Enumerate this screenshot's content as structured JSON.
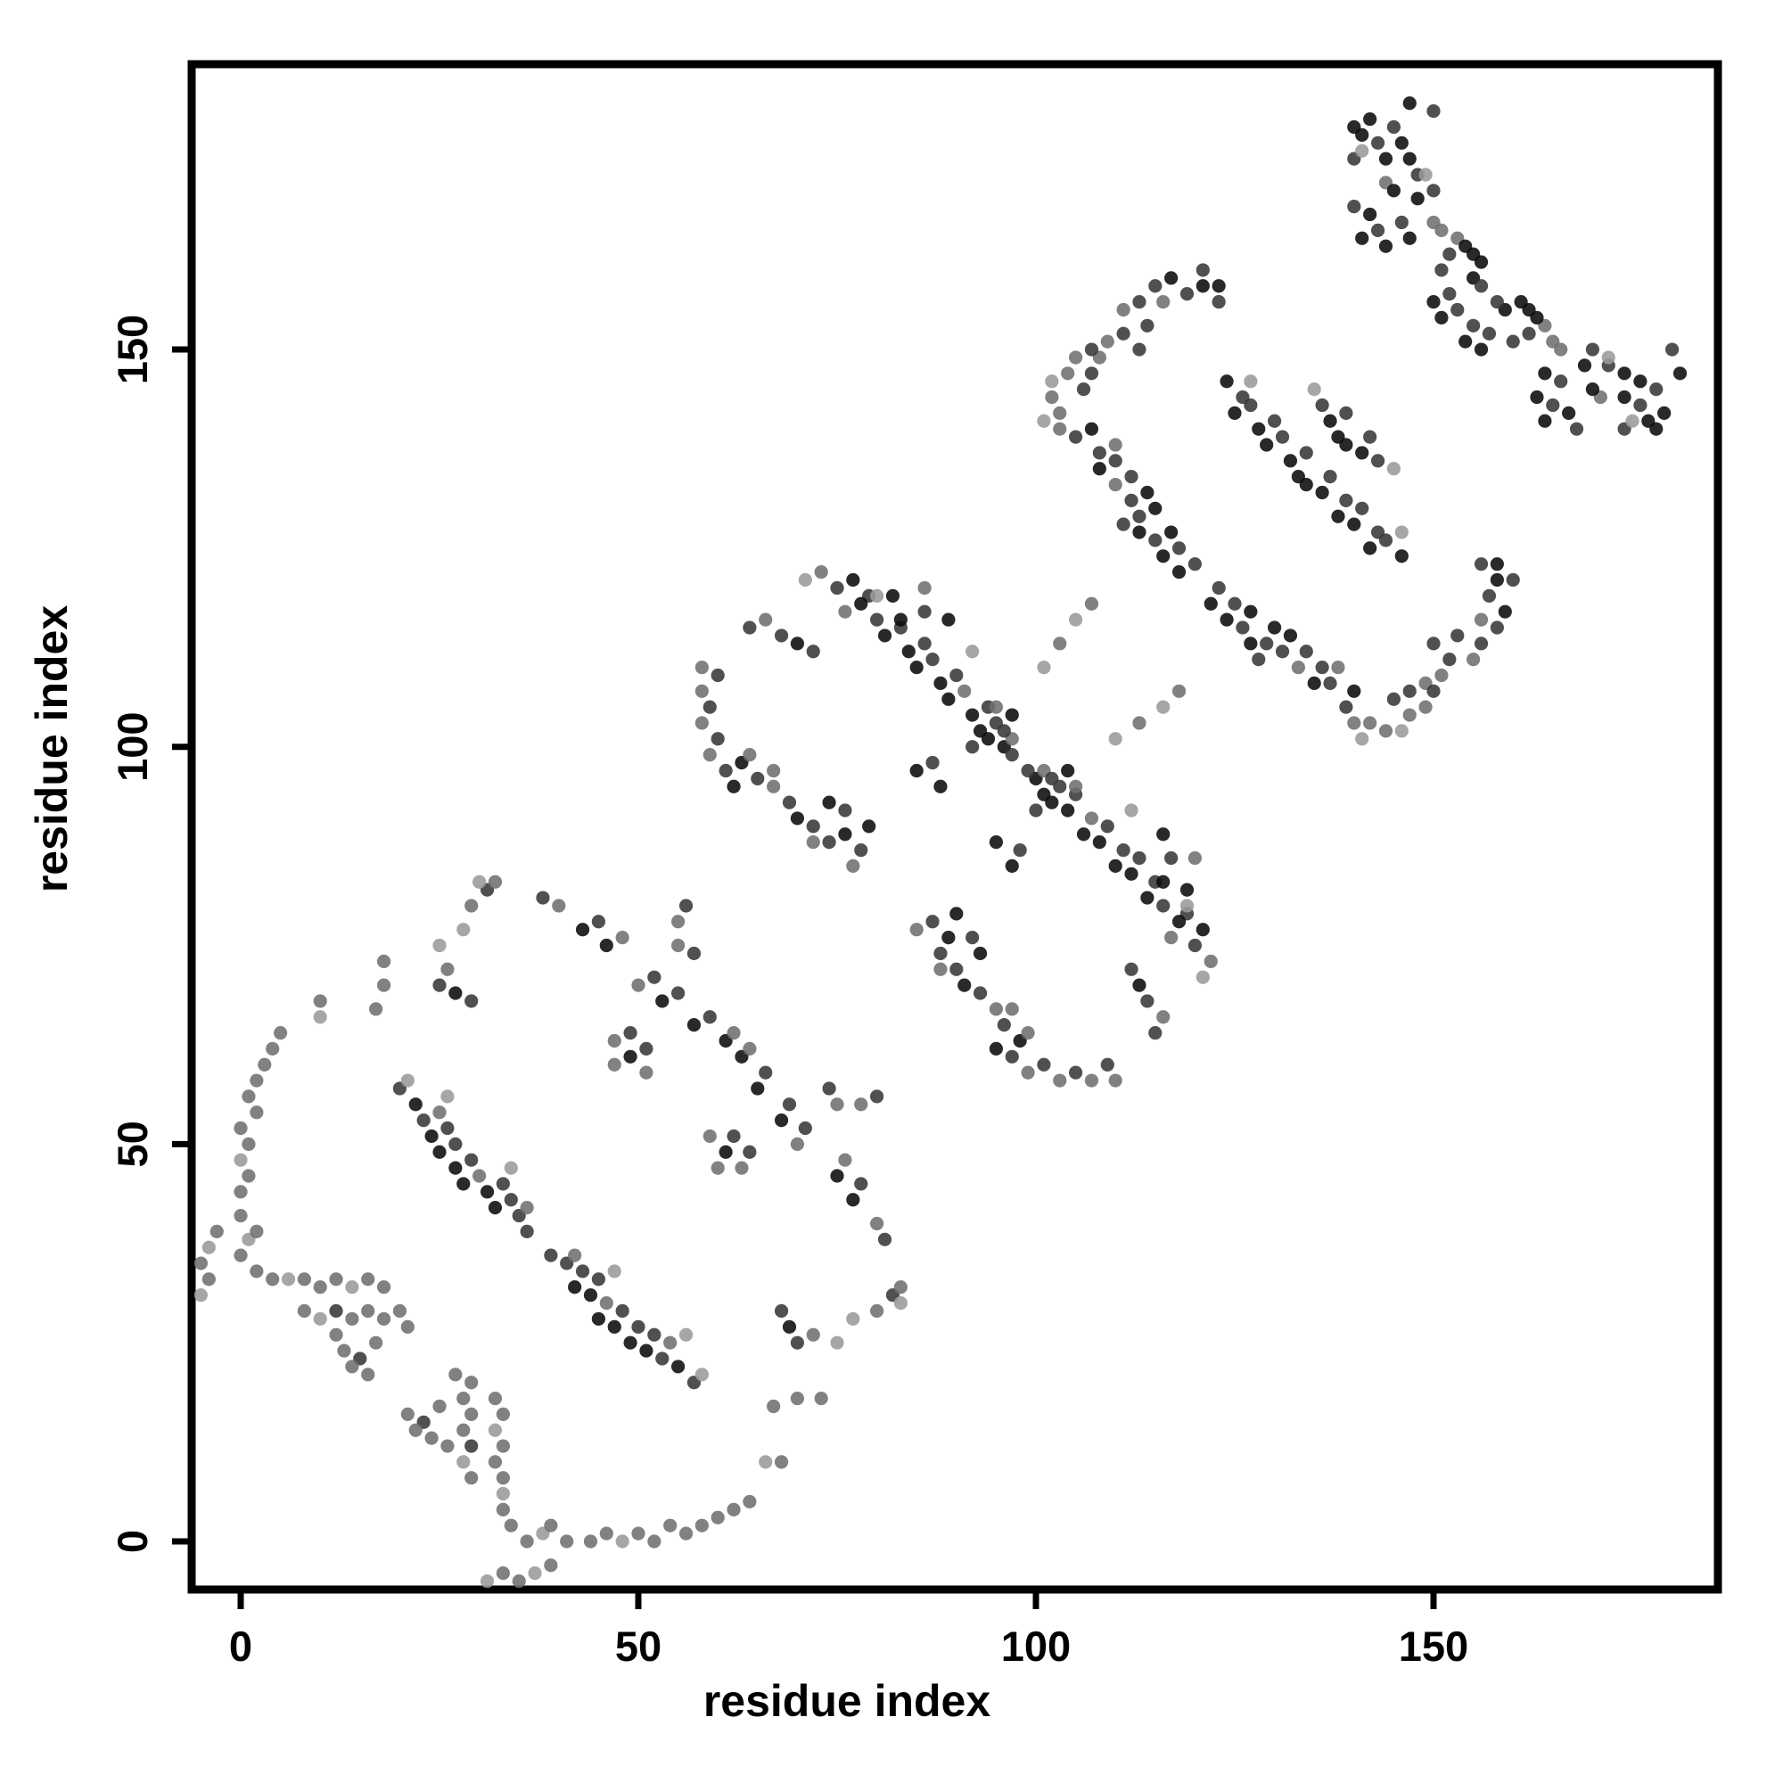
{
  "chart_data": {
    "type": "scatter",
    "title": "",
    "xlabel": "residue index",
    "ylabel": "residue index",
    "xlim": [
      -6,
      186
    ],
    "ylim": [
      -6,
      186
    ],
    "x_ticks": [
      0,
      50,
      100,
      150
    ],
    "y_ticks": [
      0,
      50,
      100,
      150
    ],
    "grid": false,
    "legend": "none",
    "symmetric_about_diagonal": true,
    "marker": {
      "radius_px": 7.6,
      "opacity": 0.88
    },
    "shade_palette": [
      "#0b0b0b",
      "#383838",
      "#6f6f6f",
      "#9a9a9a"
    ],
    "points_note": "unique contact pairs (i<j); map is symmetric, mirror (j,i) also plotted; third value = shade index into shade_palette",
    "points": [
      [
        -5,
        31,
        3
      ],
      [
        -4,
        33,
        2
      ],
      [
        -5,
        35,
        2
      ],
      [
        -4,
        37,
        3
      ],
      [
        -3,
        39,
        2
      ],
      [
        0,
        36,
        2
      ],
      [
        1,
        38,
        3
      ],
      [
        2,
        39,
        2
      ],
      [
        0,
        41,
        2
      ],
      [
        2,
        34,
        2
      ],
      [
        4,
        33,
        2
      ],
      [
        6,
        33,
        3
      ],
      [
        8,
        33,
        2
      ],
      [
        10,
        32,
        2
      ],
      [
        12,
        33,
        2
      ],
      [
        14,
        32,
        3
      ],
      [
        16,
        33,
        2
      ],
      [
        18,
        32,
        2
      ],
      [
        8,
        29,
        2
      ],
      [
        10,
        28,
        3
      ],
      [
        12,
        29,
        1
      ],
      [
        14,
        28,
        2
      ],
      [
        16,
        29,
        2
      ],
      [
        18,
        28,
        2
      ],
      [
        20,
        29,
        2
      ],
      [
        21,
        27,
        2
      ],
      [
        12,
        26,
        2
      ],
      [
        13,
        24,
        2
      ],
      [
        15,
        23,
        1
      ],
      [
        16,
        21,
        2
      ],
      [
        14,
        22,
        2
      ],
      [
        17,
        25,
        2
      ],
      [
        0,
        44,
        2
      ],
      [
        1,
        46,
        2
      ],
      [
        0,
        48,
        3
      ],
      [
        1,
        50,
        2
      ],
      [
        0,
        52,
        2
      ],
      [
        2,
        54,
        2
      ],
      [
        1,
        56,
        2
      ],
      [
        2,
        58,
        2
      ],
      [
        3,
        60,
        2
      ],
      [
        4,
        62,
        2
      ],
      [
        5,
        64,
        2
      ],
      [
        10,
        66,
        3
      ],
      [
        10,
        68,
        2
      ],
      [
        17,
        67,
        2
      ],
      [
        18,
        70,
        2
      ],
      [
        18,
        73,
        2
      ],
      [
        25,
        75,
        3
      ],
      [
        28,
        77,
        3
      ],
      [
        29,
        80,
        2
      ],
      [
        31,
        82,
        1
      ],
      [
        32,
        83,
        2
      ],
      [
        30,
        83,
        3
      ],
      [
        25,
        70,
        1
      ],
      [
        27,
        69,
        0
      ],
      [
        29,
        68,
        1
      ],
      [
        26,
        72,
        2
      ],
      [
        38,
        81,
        1
      ],
      [
        40,
        80,
        2
      ],
      [
        43,
        77,
        0
      ],
      [
        45,
        78,
        1
      ],
      [
        46,
        75,
        0
      ],
      [
        48,
        76,
        2
      ],
      [
        50,
        70,
        2
      ],
      [
        52,
        71,
        1
      ],
      [
        53,
        68,
        0
      ],
      [
        55,
        69,
        1
      ],
      [
        57,
        65,
        0
      ],
      [
        59,
        66,
        1
      ],
      [
        61,
        63,
        0
      ],
      [
        62,
        64,
        2
      ],
      [
        47,
        63,
        2
      ],
      [
        49,
        64,
        1
      ],
      [
        47,
        60,
        2
      ],
      [
        49,
        61,
        0
      ],
      [
        51,
        62,
        1
      ],
      [
        51,
        59,
        2
      ],
      [
        20,
        57,
        1
      ],
      [
        22,
        55,
        0
      ],
      [
        23,
        53,
        1
      ],
      [
        25,
        54,
        2
      ],
      [
        24,
        51,
        0
      ],
      [
        26,
        52,
        1
      ],
      [
        25,
        49,
        0
      ],
      [
        27,
        50,
        1
      ],
      [
        27,
        47,
        0
      ],
      [
        29,
        48,
        1
      ],
      [
        28,
        45,
        0
      ],
      [
        30,
        46,
        2
      ],
      [
        31,
        44,
        0
      ],
      [
        33,
        45,
        1
      ],
      [
        32,
        42,
        0
      ],
      [
        34,
        43,
        1
      ],
      [
        35,
        41,
        1
      ],
      [
        36,
        42,
        2
      ],
      [
        36,
        39,
        1
      ],
      [
        21,
        58,
        3
      ],
      [
        26,
        56,
        3
      ],
      [
        34,
        47,
        3
      ],
      [
        58,
        110,
        2
      ],
      [
        60,
        109,
        1
      ],
      [
        58,
        107,
        2
      ],
      [
        59,
        105,
        1
      ],
      [
        58,
        103,
        2
      ],
      [
        60,
        101,
        1
      ],
      [
        59,
        99,
        2
      ],
      [
        61,
        97,
        1
      ],
      [
        63,
        98,
        0
      ],
      [
        65,
        96,
        1
      ],
      [
        67,
        97,
        2
      ],
      [
        64,
        99,
        2
      ],
      [
        62,
        95,
        0
      ],
      [
        67,
        95,
        2
      ],
      [
        69,
        93,
        1
      ],
      [
        70,
        91,
        0
      ],
      [
        72,
        90,
        1
      ],
      [
        74,
        93,
        0
      ],
      [
        76,
        92,
        1
      ],
      [
        72,
        88,
        2
      ],
      [
        74,
        88,
        1
      ],
      [
        76,
        89,
        0
      ],
      [
        78,
        87,
        1
      ],
      [
        77,
        85,
        2
      ],
      [
        79,
        90,
        0
      ],
      [
        85,
        97,
        0
      ],
      [
        87,
        98,
        1
      ],
      [
        88,
        95,
        0
      ],
      [
        55,
        78,
        2
      ],
      [
        56,
        80,
        1
      ],
      [
        55,
        75,
        2
      ],
      [
        57,
        74,
        1
      ],
      [
        64,
        115,
        1
      ],
      [
        66,
        116,
        2
      ],
      [
        68,
        114,
        1
      ],
      [
        70,
        113,
        0
      ],
      [
        72,
        112,
        1
      ],
      [
        71,
        121,
        3
      ],
      [
        73,
        122,
        2
      ],
      [
        75,
        120,
        1
      ],
      [
        77,
        121,
        0
      ],
      [
        79,
        119,
        1
      ],
      [
        76,
        117,
        2
      ],
      [
        80,
        119,
        3
      ],
      [
        78,
        118,
        0
      ],
      [
        80,
        116,
        1
      ],
      [
        81,
        114,
        0
      ],
      [
        83,
        115,
        1
      ],
      [
        84,
        112,
        0
      ],
      [
        86,
        113,
        1
      ],
      [
        85,
        110,
        0
      ],
      [
        87,
        111,
        1
      ],
      [
        88,
        108,
        0
      ],
      [
        90,
        109,
        1
      ],
      [
        89,
        106,
        0
      ],
      [
        91,
        107,
        2
      ],
      [
        92,
        104,
        0
      ],
      [
        94,
        105,
        1
      ],
      [
        93,
        102,
        0
      ],
      [
        95,
        103,
        1
      ],
      [
        96,
        100,
        0
      ],
      [
        97,
        101,
        2
      ],
      [
        97,
        99,
        1
      ],
      [
        92,
        112,
        3
      ],
      [
        82,
        119,
        0
      ],
      [
        83,
        116,
        0
      ],
      [
        86,
        117,
        1
      ],
      [
        86,
        120,
        2
      ],
      [
        89,
        116,
        0
      ],
      [
        95,
        105,
        2
      ],
      [
        97,
        104,
        0
      ],
      [
        92,
        100,
        1
      ],
      [
        94,
        101,
        0
      ],
      [
        96,
        102,
        1
      ],
      [
        101,
        110,
        3
      ],
      [
        103,
        113,
        2
      ],
      [
        105,
        116,
        3
      ],
      [
        107,
        118,
        2
      ],
      [
        102,
        146,
        3
      ],
      [
        104,
        147,
        2
      ],
      [
        102,
        144,
        2
      ],
      [
        106,
        145,
        1
      ],
      [
        107,
        147,
        1
      ],
      [
        101,
        141,
        3
      ],
      [
        103,
        142,
        2
      ],
      [
        103,
        140,
        2
      ],
      [
        105,
        139,
        1
      ],
      [
        107,
        140,
        0
      ],
      [
        108,
        137,
        1
      ],
      [
        110,
        138,
        2
      ],
      [
        108,
        135,
        0
      ],
      [
        110,
        136,
        1
      ],
      [
        112,
        134,
        1
      ],
      [
        110,
        133,
        2
      ],
      [
        112,
        131,
        1
      ],
      [
        114,
        132,
        0
      ],
      [
        113,
        129,
        1
      ],
      [
        115,
        130,
        0
      ],
      [
        111,
        128,
        1
      ],
      [
        113,
        127,
        0
      ],
      [
        115,
        126,
        1
      ],
      [
        117,
        127,
        0
      ],
      [
        116,
        124,
        0
      ],
      [
        118,
        125,
        1
      ],
      [
        118,
        122,
        0
      ],
      [
        120,
        123,
        1
      ],
      [
        109,
        151,
        2
      ],
      [
        111,
        152,
        1
      ],
      [
        113,
        150,
        1
      ],
      [
        108,
        149,
        2
      ],
      [
        111,
        155,
        2
      ],
      [
        113,
        156,
        1
      ],
      [
        114,
        153,
        1
      ],
      [
        115,
        158,
        1
      ],
      [
        117,
        159,
        0
      ],
      [
        119,
        157,
        1
      ],
      [
        121,
        158,
        0
      ],
      [
        123,
        156,
        1
      ],
      [
        116,
        156,
        2
      ],
      [
        121,
        160,
        1
      ],
      [
        123,
        158,
        0
      ],
      [
        105,
        149,
        2
      ],
      [
        107,
        150,
        1
      ],
      [
        124,
        146,
        0
      ],
      [
        126,
        144,
        1
      ],
      [
        125,
        142,
        0
      ],
      [
        127,
        143,
        1
      ],
      [
        128,
        140,
        0
      ],
      [
        130,
        141,
        1
      ],
      [
        129,
        138,
        0
      ],
      [
        131,
        139,
        1
      ],
      [
        132,
        136,
        0
      ],
      [
        134,
        137,
        1
      ],
      [
        133,
        134,
        0
      ],
      [
        127,
        146,
        3
      ],
      [
        135,
        145,
        3
      ],
      [
        136,
        143,
        1
      ],
      [
        137,
        141,
        0
      ],
      [
        139,
        142,
        1
      ],
      [
        138,
        139,
        0
      ],
      [
        140,
        178,
        0
      ],
      [
        142,
        179,
        0
      ],
      [
        141,
        177,
        0
      ],
      [
        140,
        174,
        1
      ],
      [
        141,
        175,
        3
      ],
      [
        143,
        176,
        1
      ],
      [
        144,
        174,
        0
      ],
      [
        144,
        171,
        2
      ],
      [
        145,
        170,
        0
      ],
      [
        145,
        178,
        1
      ],
      [
        146,
        176,
        0
      ],
      [
        147,
        174,
        0
      ],
      [
        148,
        172,
        1
      ],
      [
        149,
        172,
        3
      ],
      [
        147,
        181,
        0
      ],
      [
        150,
        180,
        1
      ],
      [
        148,
        169,
        0
      ],
      [
        150,
        170,
        1
      ],
      [
        140,
        168,
        1
      ],
      [
        142,
        167,
        0
      ],
      [
        141,
        164,
        0
      ],
      [
        143,
        165,
        1
      ],
      [
        144,
        163,
        0
      ],
      [
        146,
        166,
        1
      ],
      [
        147,
        164,
        0
      ],
      [
        151,
        165,
        2
      ],
      [
        153,
        164,
        2
      ],
      [
        154,
        163,
        0
      ],
      [
        155,
        162,
        0
      ],
      [
        156,
        161,
        0
      ],
      [
        151,
        160,
        1
      ],
      [
        152,
        162,
        1
      ],
      [
        150,
        166,
        2
      ],
      [
        150,
        156,
        0
      ],
      [
        152,
        157,
        1
      ],
      [
        151,
        154,
        0
      ],
      [
        153,
        155,
        1
      ],
      [
        155,
        159,
        0
      ],
      [
        156,
        158,
        1
      ]
    ]
  }
}
